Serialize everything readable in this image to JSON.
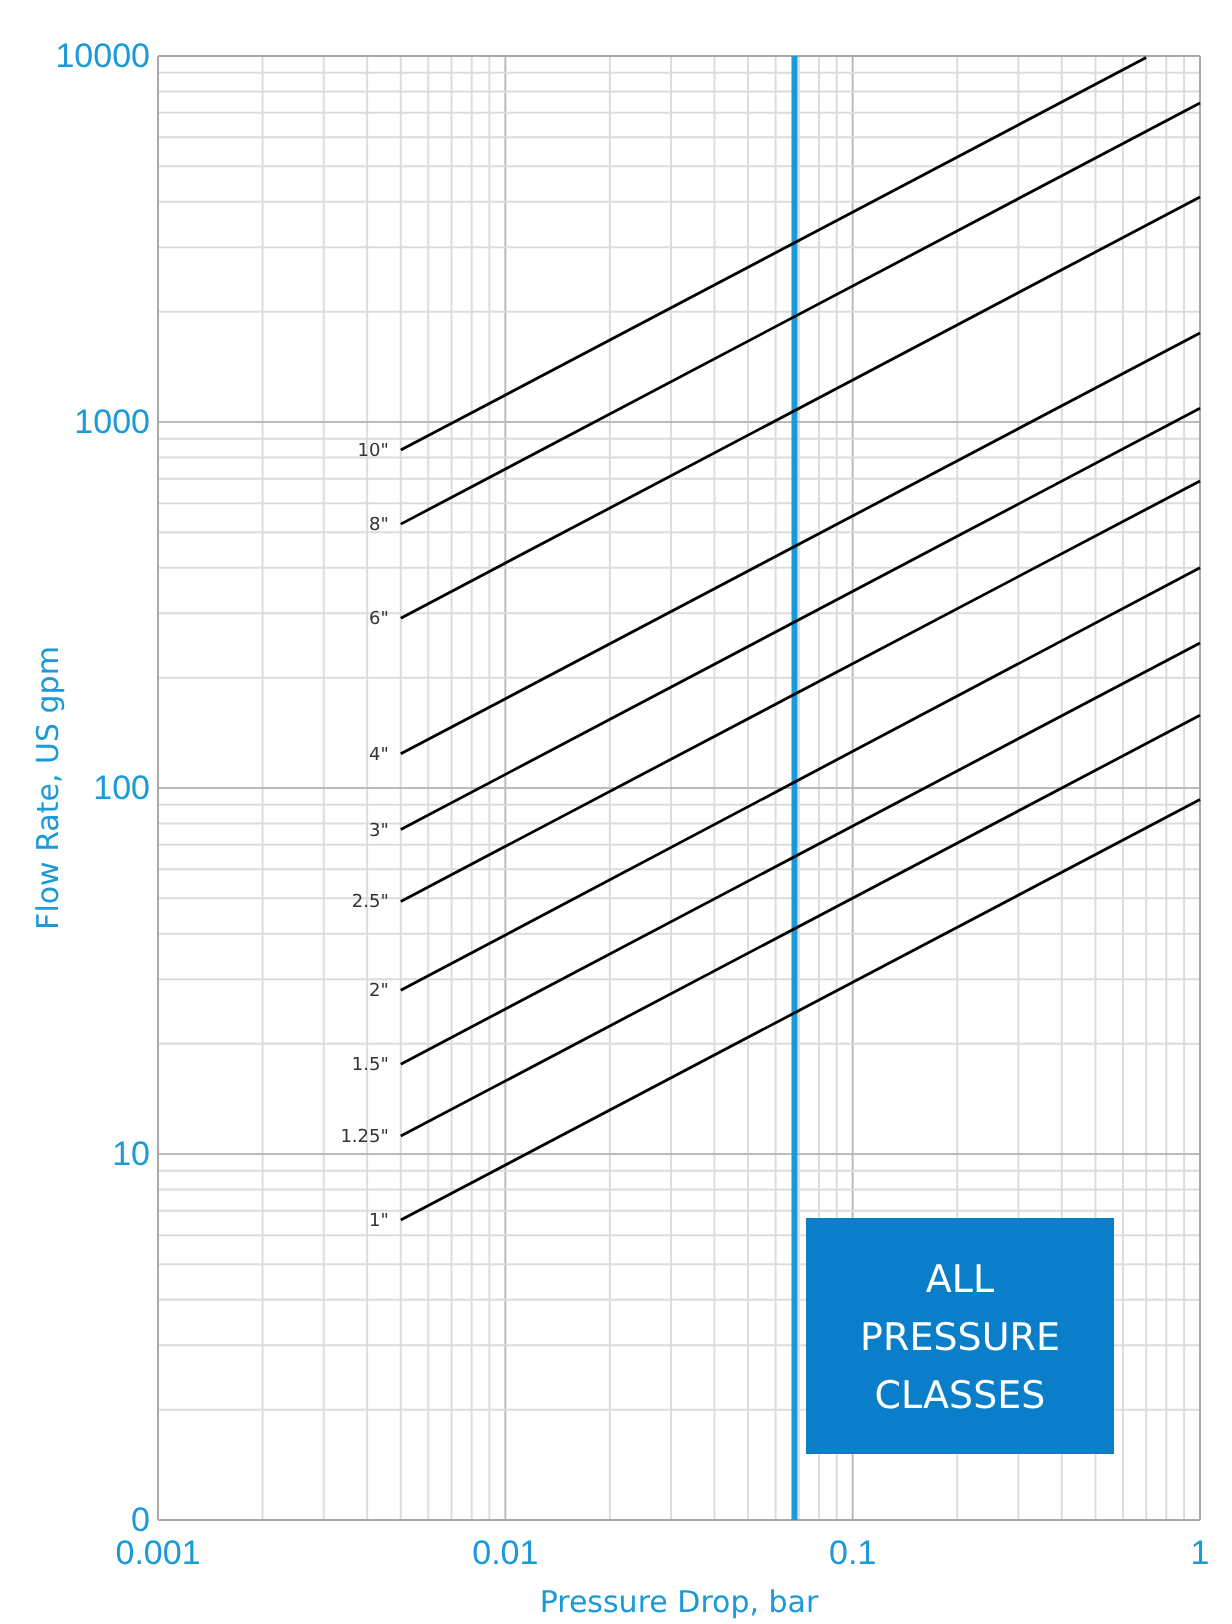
{
  "chart_data": {
    "type": "line",
    "xlabel": "Pressure Drop, bar",
    "ylabel": "Flow Rate, US gpm",
    "log": "xy",
    "grid": true,
    "marker": "none",
    "line_style": "solid",
    "xlim": [
      0.001,
      1
    ],
    "xticks": [
      0.001,
      0.01,
      0.1,
      1
    ],
    "ylim": [
      0,
      10000
    ],
    "yticks": [
      0,
      10,
      100,
      1000,
      10000
    ],
    "series": [
      {
        "name": "10\"",
        "color": "#000000",
        "x": [
          0.005,
          0.7
        ],
        "values": [
          838,
          9900
        ]
      },
      {
        "name": "8\"",
        "color": "#000000",
        "x": [
          0.005,
          1
        ],
        "values": [
          526,
          7440
        ]
      },
      {
        "name": "6\"",
        "color": "#000000",
        "x": [
          0.005,
          1
        ],
        "values": [
          291,
          4120
        ]
      },
      {
        "name": "4\"",
        "color": "#000000",
        "x": [
          0.005,
          1
        ],
        "values": [
          124,
          1750
        ]
      },
      {
        "name": "3\"",
        "color": "#000000",
        "x": [
          0.005,
          1
        ],
        "values": [
          77,
          1090
        ]
      },
      {
        "name": "2.5\"",
        "color": "#000000",
        "x": [
          0.005,
          1
        ],
        "values": [
          49,
          690
        ]
      },
      {
        "name": "2\"",
        "color": "#000000",
        "x": [
          0.005,
          1
        ],
        "values": [
          28,
          400
        ]
      },
      {
        "name": "1.5\"",
        "color": "#000000",
        "x": [
          0.005,
          1
        ],
        "values": [
          17.6,
          249
        ]
      },
      {
        "name": "1.25\"",
        "color": "#000000",
        "x": [
          0.005,
          1
        ],
        "values": [
          11.2,
          158
        ]
      },
      {
        "name": "1\"",
        "color": "#000000",
        "x": [
          0.005,
          1
        ],
        "values": [
          6.6,
          93
        ]
      }
    ],
    "ref_lines": [
      {
        "axis": "x",
        "value": 0.068,
        "color": "#1a9ad6"
      }
    ],
    "annotations": [
      "ALL PRESSURE CLASSES"
    ]
  }
}
